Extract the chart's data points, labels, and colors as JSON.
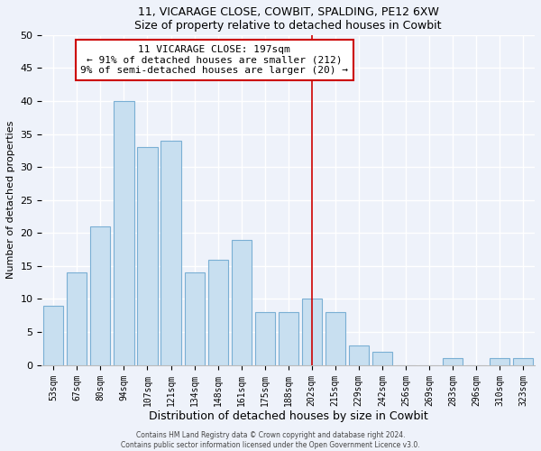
{
  "title1": "11, VICARAGE CLOSE, COWBIT, SPALDING, PE12 6XW",
  "title2": "Size of property relative to detached houses in Cowbit",
  "xlabel": "Distribution of detached houses by size in Cowbit",
  "ylabel": "Number of detached properties",
  "bar_labels": [
    "53sqm",
    "67sqm",
    "80sqm",
    "94sqm",
    "107sqm",
    "121sqm",
    "134sqm",
    "148sqm",
    "161sqm",
    "175sqm",
    "188sqm",
    "202sqm",
    "215sqm",
    "229sqm",
    "242sqm",
    "256sqm",
    "269sqm",
    "283sqm",
    "296sqm",
    "310sqm",
    "323sqm"
  ],
  "bar_heights": [
    9,
    14,
    21,
    40,
    33,
    34,
    14,
    16,
    19,
    8,
    8,
    10,
    8,
    3,
    2,
    0,
    0,
    1,
    0,
    1,
    1
  ],
  "bar_color": "#c8dff0",
  "bar_edge_color": "#7aafd4",
  "highlight_line_color": "#cc0000",
  "annotation_title": "11 VICARAGE CLOSE: 197sqm",
  "annotation_line1": "← 91% of detached houses are smaller (212)",
  "annotation_line2": "9% of semi-detached houses are larger (20) →",
  "annotation_box_color": "#ffffff",
  "annotation_box_edge": "#cc0000",
  "ylim": [
    0,
    50
  ],
  "yticks": [
    0,
    5,
    10,
    15,
    20,
    25,
    30,
    35,
    40,
    45,
    50
  ],
  "footer1": "Contains HM Land Registry data © Crown copyright and database right 2024.",
  "footer2": "Contains public sector information licensed under the Open Government Licence v3.0.",
  "bg_color": "#eef2fa",
  "grid_color": "#ffffff"
}
